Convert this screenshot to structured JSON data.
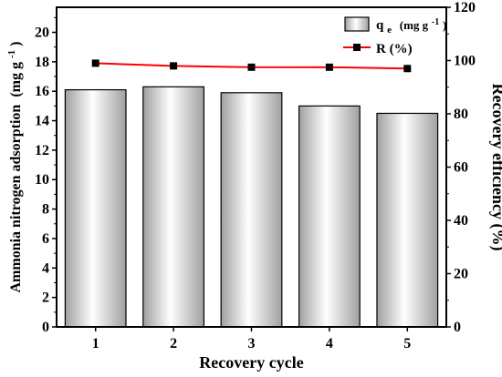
{
  "chart_data": {
    "type": "bar",
    "categories": [
      "1",
      "2",
      "3",
      "4",
      "5"
    ],
    "xlabel": "Recovery cycle",
    "ylabel_left": "Ammonia nitrogen adsorption",
    "ylabel_left_unit": "(mg g",
    "ylabel_left_unit_sup": "-1",
    "ylabel_left_unit_close": ")",
    "ylabel_right": "Recovery efficiency (%)",
    "ylim_left": [
      0,
      21.7
    ],
    "ylim_right": [
      0,
      120
    ],
    "yticks_left": [
      "0",
      "2",
      "4",
      "6",
      "8",
      "10",
      "12",
      "14",
      "16",
      "18",
      "20"
    ],
    "yticks_right": [
      "0",
      "20",
      "40",
      "60",
      "80",
      "100",
      "120"
    ],
    "series": [
      {
        "name": "q",
        "name_sub": "e",
        "name_unit": "(mg g",
        "name_unit_sup": "-1",
        "name_unit_close": ")",
        "kind": "bar",
        "axis": "left",
        "values": [
          16.1,
          16.3,
          15.9,
          15.0,
          14.5
        ]
      },
      {
        "name": "R (%)",
        "kind": "line",
        "axis": "right",
        "values": [
          99.0,
          98.0,
          97.5,
          97.5,
          97.0
        ]
      }
    ],
    "legend_position": "top-right",
    "colors": {
      "bar_top": "#a0a0a0",
      "bar_mid": "#ffffff",
      "line": "#ff0000",
      "marker": "#000000"
    }
  }
}
